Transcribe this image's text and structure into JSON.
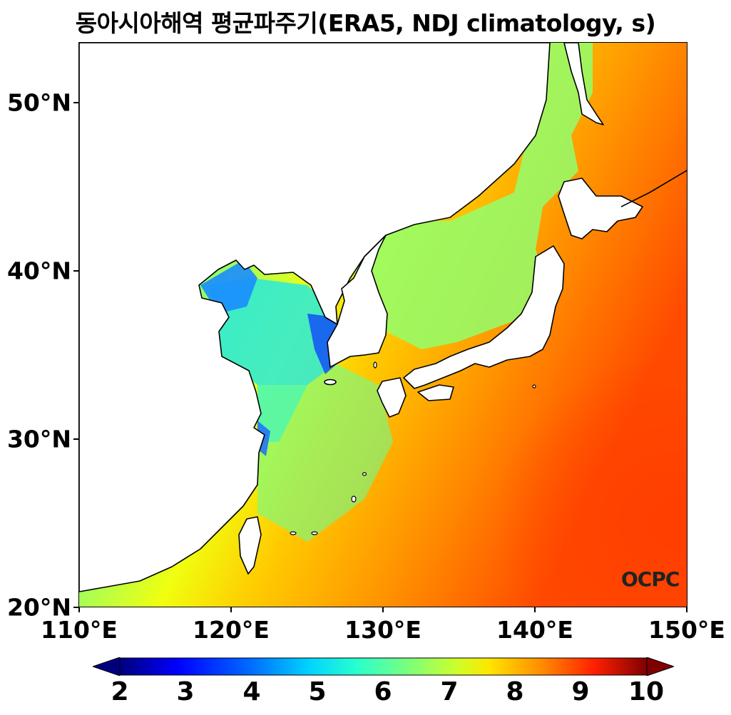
{
  "title": "동아시아해역 평균파주기(ERA5, NDJ climatology, s)",
  "map": {
    "extent": {
      "lon": [
        110,
        150
      ],
      "lat": [
        20,
        53.5
      ]
    },
    "lat_labels": [
      "50°N",
      "40°N",
      "30°N",
      "20°N"
    ],
    "lon_labels": [
      "110°E",
      "120°E",
      "130°E",
      "140°E",
      "150°E"
    ],
    "logo_text": "OCPC"
  },
  "colorbar": {
    "min": 2,
    "max": 10,
    "extend": "both",
    "colormap": "jet",
    "labels": [
      "2",
      "3",
      "4",
      "5",
      "6",
      "7",
      "8",
      "9",
      "10"
    ]
  }
}
